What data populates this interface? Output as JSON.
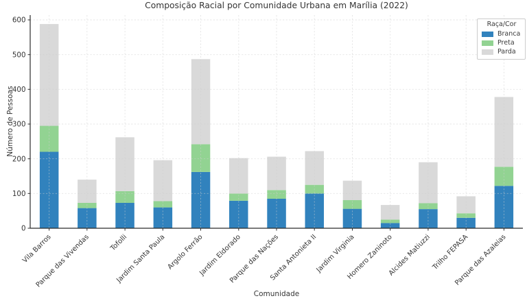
{
  "chart_data": {
    "type": "bar",
    "stacked": true,
    "title": "Composição Racial por Comunidade Urbana em Marília (2022)",
    "xlabel": "Comunidade",
    "ylabel": "Número de Pessoas",
    "legend_title": "Raça/Cor",
    "legend_position": "upper right",
    "grid": true,
    "ylim": [
      0,
      600
    ],
    "yticks": [
      0,
      100,
      200,
      300,
      400,
      500,
      600
    ],
    "categories": [
      "Vila Barros",
      "Parque das Vivendas",
      "Tofolli",
      "Jardim Santa Paula",
      "Argolo Ferrão",
      "Jardim Eldorado",
      "Parque das Nações",
      "Santa Antonieta II",
      "Jardim Virginia",
      "Homero Zaninoto",
      "Alcides Matiuzzi",
      "Trilho FEPASA",
      "Parque das Azaleias"
    ],
    "series": [
      {
        "name": "Branca",
        "color": "#3182bd",
        "values": [
          220,
          58,
          73,
          60,
          162,
          79,
          85,
          100,
          56,
          15,
          55,
          30,
          122
        ]
      },
      {
        "name": "Preta",
        "color": "#92d392",
        "values": [
          75,
          15,
          34,
          18,
          80,
          21,
          25,
          25,
          25,
          10,
          17,
          13,
          55
        ]
      },
      {
        "name": "Parda",
        "color": "#d9d9d9",
        "values": [
          293,
          67,
          155,
          118,
          245,
          102,
          96,
          97,
          56,
          42,
          118,
          49,
          201
        ]
      }
    ],
    "totals": [
      588,
      140,
      262,
      196,
      487,
      202,
      206,
      222,
      137,
      67,
      190,
      92,
      378
    ]
  }
}
